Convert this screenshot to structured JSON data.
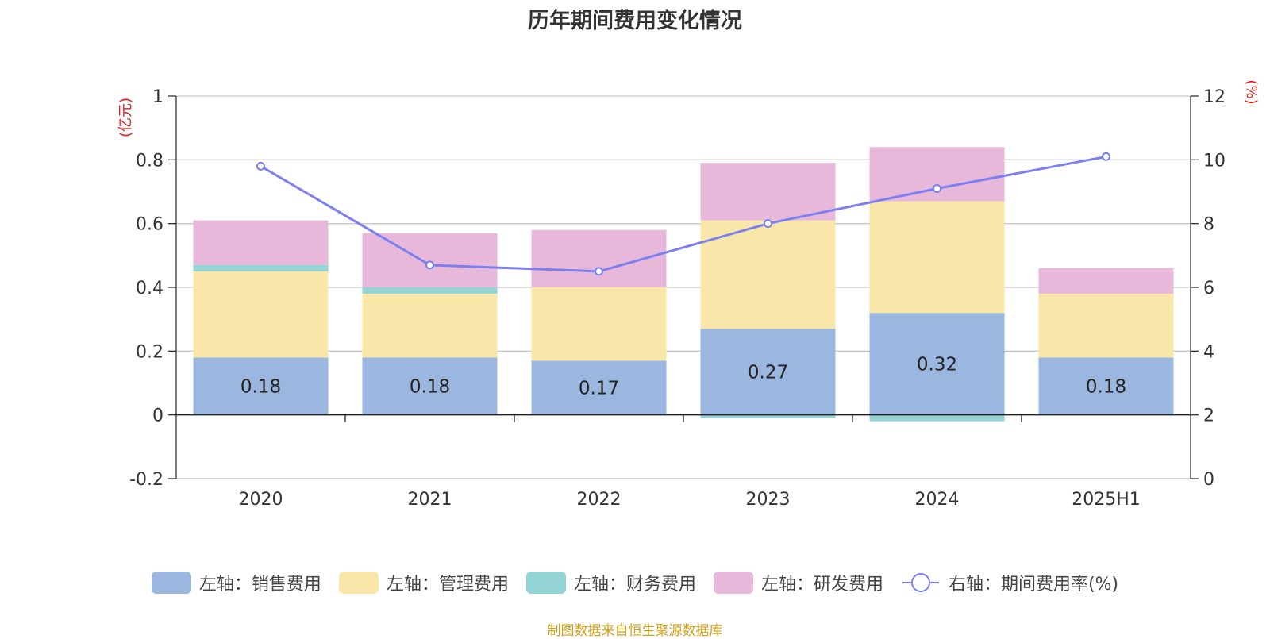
{
  "chart_data": {
    "type": "bar",
    "title": "历年期间费用变化情况",
    "categories": [
      "2020",
      "2021",
      "2022",
      "2023",
      "2024",
      "2025H1"
    ],
    "y_left": {
      "unit": "(亿元)",
      "ylim": [
        -0.2,
        1
      ],
      "ticks": [
        "-0.2",
        "0",
        "0.2",
        "0.4",
        "0.6",
        "0.8",
        "1"
      ]
    },
    "y_right": {
      "unit": "(%)",
      "ylim": [
        0,
        12
      ],
      "ticks": [
        "0",
        "2",
        "4",
        "6",
        "8",
        "10",
        "12"
      ]
    },
    "grid": true,
    "legend_position": "bottom",
    "series": [
      {
        "name": "左轴：销售费用",
        "axis": "left",
        "stacked": true,
        "color": "#9bb7e0",
        "values": [
          0.18,
          0.18,
          0.17,
          0.27,
          0.32,
          0.18
        ],
        "labels": [
          "0.18",
          "0.18",
          "0.17",
          "0.27",
          "0.32",
          "0.18"
        ]
      },
      {
        "name": "左轴：管理费用",
        "axis": "left",
        "stacked": true,
        "color": "#f8e7a8",
        "values": [
          0.27,
          0.2,
          0.23,
          0.34,
          0.35,
          0.2
        ]
      },
      {
        "name": "左轴：财务费用",
        "axis": "left",
        "stacked": true,
        "color": "#95d4d4",
        "values": [
          0.02,
          0.02,
          0.0,
          -0.01,
          -0.02,
          0.0
        ]
      },
      {
        "name": "左轴：研发费用",
        "axis": "left",
        "stacked": true,
        "color": "#e7b8da",
        "values": [
          0.14,
          0.17,
          0.18,
          0.18,
          0.17,
          0.08
        ]
      },
      {
        "name": "右轴：期间费用率(%)",
        "axis": "right",
        "type": "line",
        "color": "#7b7ff0",
        "values": [
          9.8,
          6.7,
          6.5,
          8.0,
          9.1,
          10.1
        ]
      }
    ]
  },
  "source_text": "制图数据来自恒生聚源数据库"
}
